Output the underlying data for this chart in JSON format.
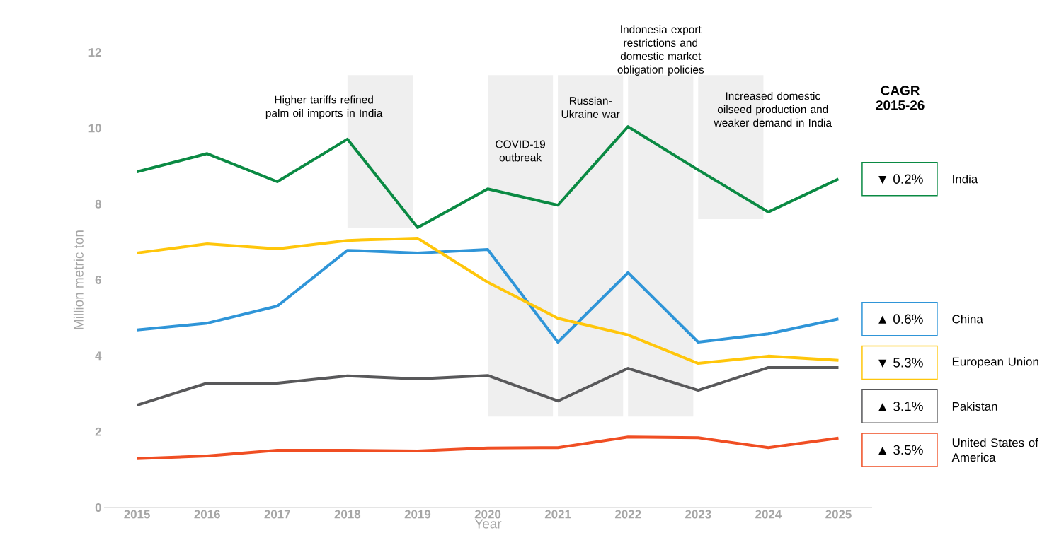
{
  "chart_data": {
    "type": "line",
    "xlabel": "Year",
    "ylabel": "Million metric ton",
    "legend_title": "CAGR 2015-26",
    "categories": [
      "2015",
      "2016",
      "2017",
      "2018",
      "2019",
      "2020",
      "2021",
      "2022",
      "2023",
      "2024",
      "2025"
    ],
    "series": [
      {
        "name": "India",
        "color": "#0a8a43",
        "values": [
          8.85,
          9.33,
          8.59,
          9.71,
          7.38,
          8.4,
          7.97,
          10.04,
          8.9,
          7.79,
          8.66
        ]
      },
      {
        "name": "China",
        "color": "#2f95d8",
        "values": [
          4.68,
          4.86,
          5.31,
          6.78,
          6.71,
          6.8,
          4.36,
          6.19,
          4.36,
          4.58,
          4.97
        ]
      },
      {
        "name": "European Union",
        "color": "#ffc60b",
        "values": [
          6.71,
          6.95,
          6.82,
          7.04,
          7.1,
          5.94,
          4.99,
          4.55,
          3.8,
          3.99,
          3.88
        ]
      },
      {
        "name": "Pakistan",
        "color": "#58585a",
        "values": [
          2.7,
          3.28,
          3.28,
          3.47,
          3.39,
          3.48,
          2.81,
          3.67,
          3.09,
          3.69,
          3.69
        ]
      },
      {
        "name": "United States of America",
        "color": "#f04e23",
        "values": [
          1.29,
          1.36,
          1.51,
          1.51,
          1.49,
          1.57,
          1.58,
          1.86,
          1.84,
          1.58,
          1.83
        ]
      }
    ],
    "annotations": [
      "▼ 0.2%",
      "▲ 0.6%",
      "▼ 5.3%",
      "▲ 3.1%",
      "▲ 3.5%"
    ],
    "bands": [
      {
        "axis": "x",
        "from": "2018",
        "to": "2019",
        "label": "Higher tariffs refined palm oil imports in India",
        "color": "#efefef"
      },
      {
        "axis": "x",
        "from": "2020",
        "to": "2021",
        "label": "COVID-19 outbreak",
        "color": "#efefef"
      },
      {
        "axis": "x",
        "from": "2021",
        "to": "2022",
        "label": "Russian-Ukraine war",
        "color": "#efefef"
      },
      {
        "axis": "x",
        "from": "2022",
        "to": "2023",
        "label": "Indonesia export restrictions and domestic market obligation policies",
        "color": "#efefef"
      },
      {
        "axis": "x",
        "from": "2023",
        "to": "2024",
        "label": "Increased domestic oilseed production and weaker demand in India",
        "color": "#efefef"
      }
    ],
    "ylim": [
      0,
      12
    ],
    "yticks": [
      0,
      2,
      4,
      6,
      8,
      10,
      12
    ],
    "grid": false,
    "legend": "right",
    "marker": "none",
    "line_style": "solid"
  }
}
